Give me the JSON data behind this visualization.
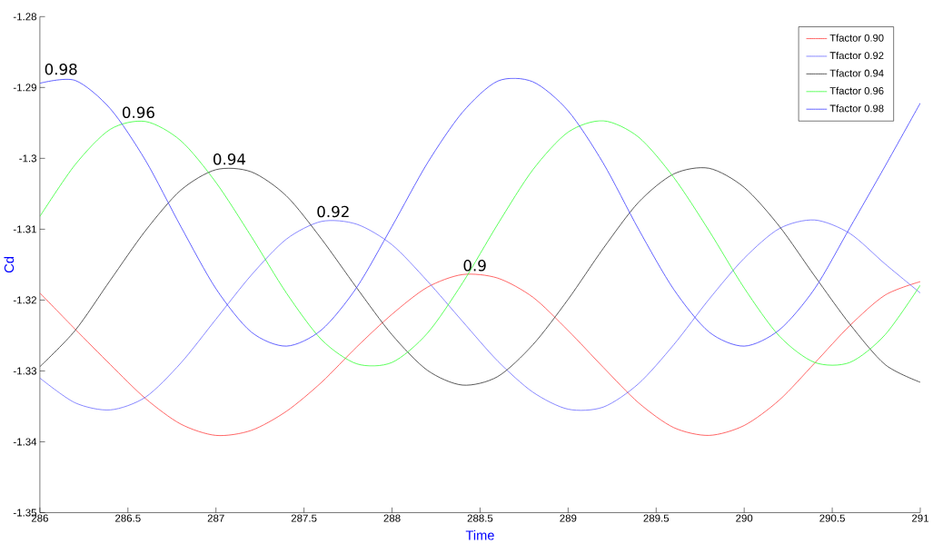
{
  "chart_data": {
    "type": "line",
    "xlabel": "Time",
    "ylabel": "Cd",
    "x": [
      286.0,
      286.2,
      286.4,
      286.6,
      286.8,
      287.0,
      287.2,
      287.4,
      287.6,
      287.8,
      288.0,
      288.2,
      288.4,
      288.6,
      288.8,
      289.0,
      289.2,
      289.4,
      289.6,
      289.8,
      290.0,
      290.2,
      290.4,
      290.6,
      290.8,
      291.0
    ],
    "series": [
      {
        "name": "Tfactor 0.90",
        "color": "#ff4040",
        "values": [
          -1.319,
          -1.3241,
          -1.3291,
          -1.3339,
          -1.3375,
          -1.3391,
          -1.3384,
          -1.3357,
          -1.3316,
          -1.3266,
          -1.322,
          -1.3182,
          -1.3164,
          -1.3169,
          -1.3196,
          -1.3243,
          -1.3295,
          -1.3345,
          -1.338,
          -1.3391,
          -1.3377,
          -1.3341,
          -1.3289,
          -1.3236,
          -1.3193,
          -1.3174
        ]
      },
      {
        "name": "Tfactor 0.92",
        "color": "#6a6aff",
        "values": [
          -1.331,
          -1.3345,
          -1.3355,
          -1.3337,
          -1.3289,
          -1.3227,
          -1.3165,
          -1.3114,
          -1.3089,
          -1.3093,
          -1.3122,
          -1.3173,
          -1.323,
          -1.3286,
          -1.333,
          -1.3354,
          -1.3351,
          -1.3318,
          -1.3263,
          -1.3199,
          -1.3141,
          -1.3099,
          -1.3087,
          -1.3106,
          -1.3149,
          -1.319
        ]
      },
      {
        "name": "Tfactor 0.94",
        "color": "#303030",
        "values": [
          -1.3294,
          -1.3243,
          -1.3172,
          -1.3102,
          -1.3045,
          -1.3016,
          -1.3019,
          -1.3053,
          -1.3114,
          -1.3183,
          -1.3249,
          -1.3299,
          -1.332,
          -1.3308,
          -1.3263,
          -1.3199,
          -1.3127,
          -1.3062,
          -1.3022,
          -1.3014,
          -1.3041,
          -1.3096,
          -1.3166,
          -1.3234,
          -1.3291,
          -1.3316
        ]
      },
      {
        "name": "Tfactor 0.96",
        "color": "#33ff33",
        "values": [
          -1.3082,
          -1.3009,
          -1.2959,
          -1.2948,
          -1.2975,
          -1.3034,
          -1.311,
          -1.319,
          -1.3256,
          -1.329,
          -1.3288,
          -1.3247,
          -1.3176,
          -1.3093,
          -1.3016,
          -1.2963,
          -1.2947,
          -1.297,
          -1.3027,
          -1.3102,
          -1.3183,
          -1.3251,
          -1.3288,
          -1.3288,
          -1.3249,
          -1.3179
        ]
      },
      {
        "name": "Tfactor 0.98",
        "color": "#3c3cff",
        "values": [
          -1.2894,
          -1.289,
          -1.293,
          -1.3003,
          -1.3096,
          -1.3184,
          -1.3245,
          -1.3265,
          -1.3242,
          -1.3182,
          -1.3096,
          -1.3007,
          -1.2935,
          -1.2891,
          -1.2892,
          -1.2933,
          -1.3007,
          -1.31,
          -1.3185,
          -1.3245,
          -1.3265,
          -1.3242,
          -1.3184,
          -1.3098,
          -1.3011,
          -1.2922
        ]
      }
    ],
    "annotations": [
      {
        "text": "0.98",
        "x": 286.12,
        "y": -1.2886
      },
      {
        "text": "0.96",
        "x": 286.56,
        "y": -1.2947
      },
      {
        "text": "0.94",
        "x": 287.076,
        "y": -1.3013
      },
      {
        "text": "0.92",
        "x": 287.666,
        "y": -1.3087
      },
      {
        "text": "0.9",
        "x": 288.47,
        "y": -1.3163
      }
    ],
    "xlim": [
      286,
      291
    ],
    "ylim": [
      -1.35,
      -1.28
    ],
    "xticks": [
      286,
      286.5,
      287,
      287.5,
      288,
      288.5,
      289,
      289.5,
      290,
      290.5,
      291
    ],
    "yticks": [
      -1.35,
      -1.34,
      -1.33,
      -1.32,
      -1.31,
      -1.3,
      -1.29,
      -1.28
    ],
    "grid": false,
    "legend": "top right",
    "marker": "none",
    "line_style": "solid"
  }
}
